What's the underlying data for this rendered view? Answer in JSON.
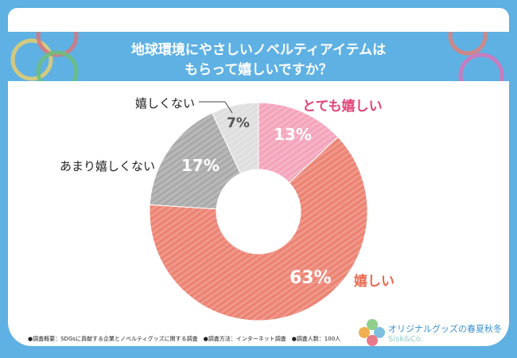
{
  "title_line1": "地球環境にやさしいノベルティアイテムは",
  "title_line2": "もらって嬉しいですか？",
  "chart_data": {
    "type": "pie",
    "title": "地球環境にやさしいノベルティアイテムはもらって嬉しいですか？",
    "categories": [
      "とても嬉しい",
      "嬉しい",
      "あまり嬉しくない",
      "嬉しくない"
    ],
    "values": [
      13,
      63,
      17,
      7
    ],
    "value_labels": [
      "13%",
      "63%",
      "17%",
      "7%"
    ],
    "colors": [
      "#f4a3bb",
      "#ec8272",
      "#a9a9a9",
      "#dedede"
    ],
    "label_colors": [
      "#e0457a",
      "#e96a50",
      "#222222",
      "#222222"
    ],
    "donut": true
  },
  "footer": "●調査概要：SDGsに貢献する企業とノベルティグッズに関する調査　●調査方法：インターネット調査　●調査人数：100人",
  "brand": {
    "name": "オリジナルグッズの春夏秋冬",
    "sub": "Sisk&Co."
  }
}
